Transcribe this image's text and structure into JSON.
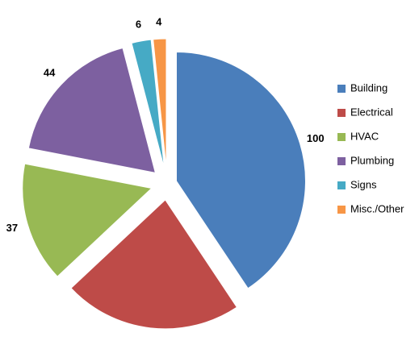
{
  "chart_data": {
    "type": "pie",
    "categories": [
      "Building",
      "Electrical",
      "HVAC",
      "Plumbing",
      "Signs",
      "Misc./Other"
    ],
    "values": [
      100,
      55,
      37,
      44,
      6,
      4
    ],
    "colors": [
      "#4a7ebb",
      "#be4b48",
      "#98b954",
      "#7d60a0",
      "#46aac5",
      "#f79646"
    ],
    "legend": "right"
  }
}
